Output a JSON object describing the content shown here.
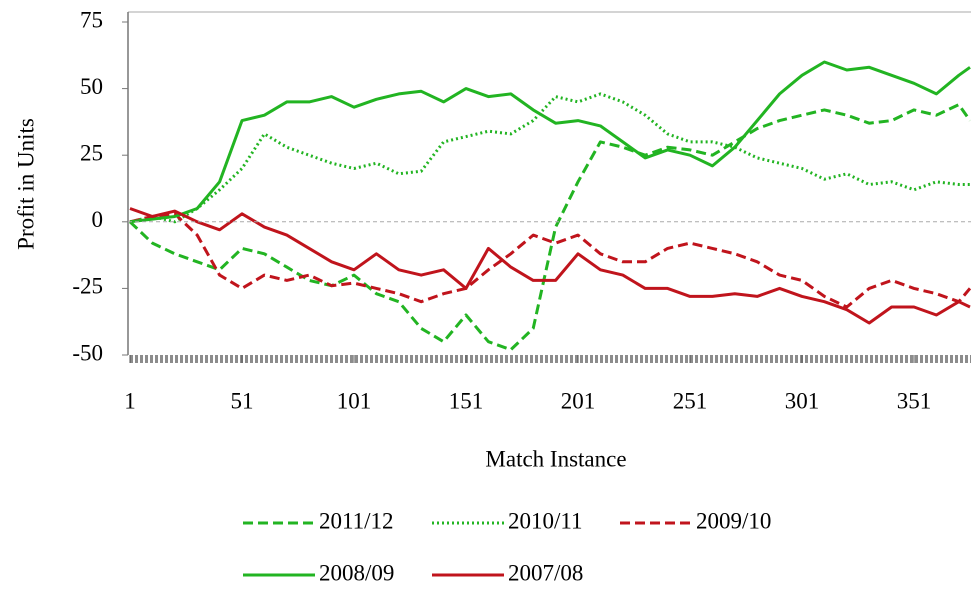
{
  "chart_data": {
    "type": "line",
    "x_label": "Match Instance",
    "y_label": "Profit in Units",
    "x": [
      1,
      11,
      21,
      31,
      41,
      51,
      61,
      71,
      81,
      91,
      101,
      111,
      121,
      131,
      141,
      151,
      161,
      171,
      181,
      191,
      201,
      211,
      221,
      231,
      241,
      251,
      261,
      271,
      281,
      291,
      301,
      311,
      321,
      331,
      341,
      351,
      361,
      371,
      376
    ],
    "series": [
      {
        "name": "2011/12",
        "color": "#22b422",
        "style": "dashed",
        "values": [
          0,
          -8,
          -12,
          -15,
          -18,
          -10,
          -12,
          -17,
          -22,
          -24,
          -20,
          -27,
          -30,
          -40,
          -45,
          -35,
          -45,
          -48,
          -40,
          -2,
          15,
          30,
          28,
          25,
          28,
          27,
          25,
          30,
          35,
          38,
          40,
          42,
          40,
          37,
          38,
          42,
          40,
          44,
          38
        ]
      },
      {
        "name": "2010/11",
        "color": "#22b422",
        "style": "dotted",
        "values": [
          0,
          2,
          0,
          5,
          12,
          20,
          33,
          28,
          25,
          22,
          20,
          22,
          18,
          19,
          30,
          32,
          34,
          33,
          38,
          47,
          45,
          48,
          45,
          40,
          33,
          30,
          30,
          28,
          24,
          22,
          20,
          16,
          18,
          14,
          15,
          12,
          15,
          14,
          14
        ]
      },
      {
        "name": "2009/10",
        "color": "#c0141c",
        "style": "dashed",
        "values": [
          0,
          2,
          3,
          -5,
          -20,
          -25,
          -20,
          -22,
          -20,
          -24,
          -23,
          -25,
          -27,
          -30,
          -27,
          -25,
          -18,
          -12,
          -5,
          -8,
          -5,
          -12,
          -15,
          -15,
          -10,
          -8,
          -10,
          -12,
          -15,
          -20,
          -22,
          -28,
          -32,
          -25,
          -22,
          -25,
          -27,
          -30,
          -25
        ]
      },
      {
        "name": "2008/09",
        "color": "#22b422",
        "style": "solid",
        "values": [
          0,
          1,
          2,
          5,
          15,
          38,
          40,
          45,
          45,
          47,
          43,
          46,
          48,
          49,
          45,
          50,
          47,
          48,
          42,
          37,
          38,
          36,
          30,
          24,
          27,
          25,
          21,
          28,
          38,
          48,
          55,
          60,
          57,
          58,
          55,
          52,
          48,
          55,
          58
        ]
      },
      {
        "name": "2007/08",
        "color": "#c0141c",
        "style": "solid",
        "values": [
          5,
          2,
          4,
          0,
          -3,
          3,
          -2,
          -5,
          -10,
          -15,
          -18,
          -12,
          -18,
          -20,
          -18,
          -25,
          -10,
          -17,
          -22,
          -22,
          -12,
          -18,
          -20,
          -25,
          -25,
          -28,
          -28,
          -27,
          -28,
          -25,
          -28,
          -30,
          -33,
          -38,
          -32,
          -32,
          -35,
          -30,
          -32
        ]
      }
    ],
    "xlim": [
      1,
      376
    ],
    "xticks": [
      1,
      51,
      101,
      151,
      201,
      251,
      301,
      351
    ],
    "ylim": [
      -50,
      75
    ],
    "yticks": [
      -50,
      -25,
      0,
      25,
      50,
      75
    ]
  }
}
